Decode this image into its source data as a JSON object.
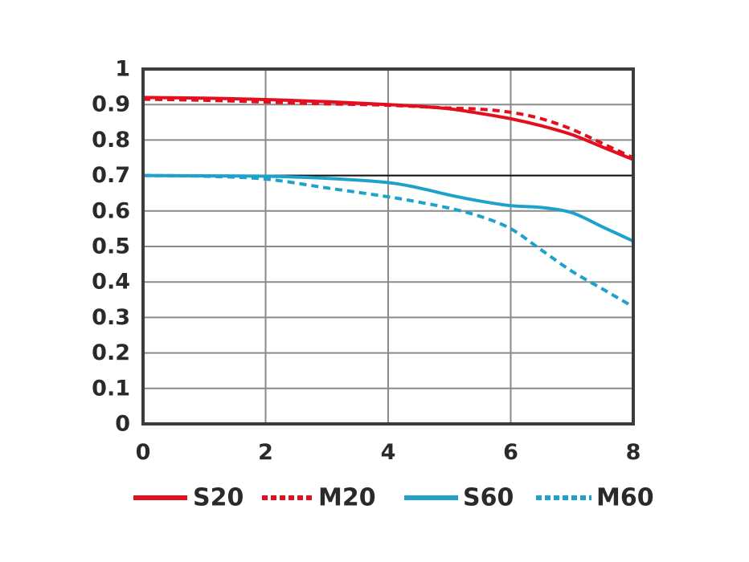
{
  "chart_data": {
    "type": "line",
    "xlim": [
      0,
      8
    ],
    "ylim": [
      0,
      1
    ],
    "x_ticks": [
      "0",
      "2",
      "4",
      "6",
      "8"
    ],
    "y_ticks": [
      "0",
      "0.1",
      "0.2",
      "0.3",
      "0.4",
      "0.5",
      "0.6",
      "0.7",
      "0.8",
      "0.9",
      "1"
    ],
    "grid": true,
    "legend_position": "bottom",
    "reference_line_y": 0.7,
    "series": [
      {
        "name": "S20",
        "color": "#e30f1f",
        "style": "solid",
        "points": [
          [
            0,
            0.92
          ],
          [
            1,
            0.918
          ],
          [
            2,
            0.914
          ],
          [
            3,
            0.908
          ],
          [
            4,
            0.9
          ],
          [
            4.5,
            0.895
          ],
          [
            5,
            0.888
          ],
          [
            5.5,
            0.875
          ],
          [
            6,
            0.86
          ],
          [
            6.5,
            0.84
          ],
          [
            7,
            0.815
          ],
          [
            7.5,
            0.78
          ],
          [
            8,
            0.745
          ]
        ]
      },
      {
        "name": "M20",
        "color": "#e30f1f",
        "style": "dashed",
        "points": [
          [
            0,
            0.915
          ],
          [
            1,
            0.912
          ],
          [
            2,
            0.907
          ],
          [
            3,
            0.902
          ],
          [
            4,
            0.898
          ],
          [
            5,
            0.89
          ],
          [
            5.5,
            0.887
          ],
          [
            6,
            0.878
          ],
          [
            6.5,
            0.86
          ],
          [
            7,
            0.83
          ],
          [
            7.5,
            0.79
          ],
          [
            8,
            0.75
          ]
        ]
      },
      {
        "name": "S60",
        "color": "#1ea1cb",
        "style": "solid",
        "points": [
          [
            0,
            0.7
          ],
          [
            1,
            0.699
          ],
          [
            2,
            0.698
          ],
          [
            3,
            0.692
          ],
          [
            4,
            0.68
          ],
          [
            4.5,
            0.665
          ],
          [
            5,
            0.645
          ],
          [
            5.5,
            0.628
          ],
          [
            6,
            0.615
          ],
          [
            6.5,
            0.61
          ],
          [
            7,
            0.595
          ],
          [
            7.5,
            0.555
          ],
          [
            8,
            0.515
          ]
        ]
      },
      {
        "name": "M60",
        "color": "#1ea1cb",
        "style": "dashed",
        "points": [
          [
            0,
            0.7
          ],
          [
            1,
            0.698
          ],
          [
            2,
            0.69
          ],
          [
            3,
            0.665
          ],
          [
            4,
            0.64
          ],
          [
            4.5,
            0.625
          ],
          [
            5,
            0.608
          ],
          [
            5.5,
            0.585
          ],
          [
            6,
            0.55
          ],
          [
            6.5,
            0.49
          ],
          [
            7,
            0.43
          ],
          [
            7.5,
            0.38
          ],
          [
            8,
            0.33
          ]
        ]
      }
    ]
  }
}
